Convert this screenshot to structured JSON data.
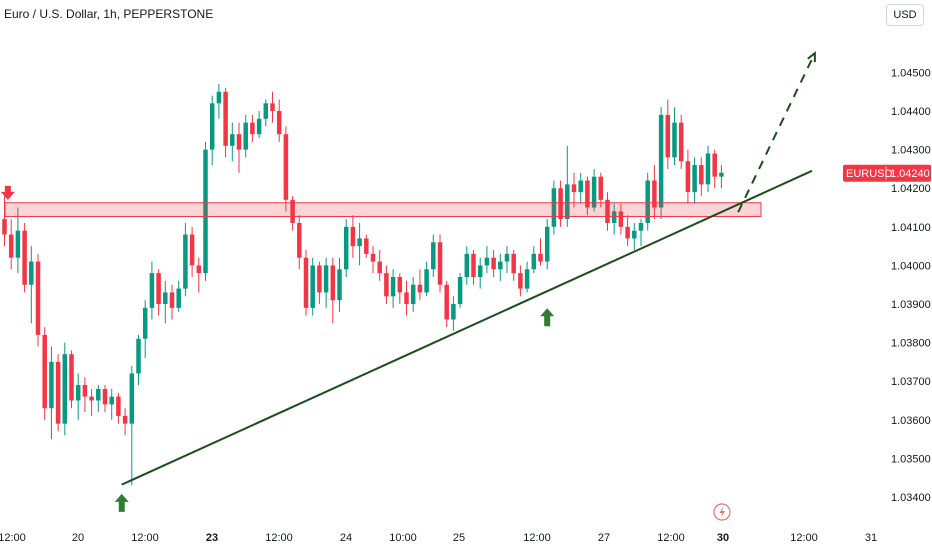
{
  "header": {
    "title": "Euro / U.S. Dollar, 1h, PEPPERSTONE",
    "currency_button": "USD"
  },
  "price_tag": {
    "symbol": "EURUSD",
    "price": "1.04240",
    "value": 1.0424,
    "color": "#f23645"
  },
  "colors": {
    "up": "#089981",
    "down": "#f23645",
    "trendline": "#1b4d1b",
    "zone": "#f23645",
    "arrow_up": "#2e7d32",
    "arrow_down": "#f23645"
  },
  "icons": {
    "replay": "lightning-icon",
    "zone_marker": "down-arrow-icon",
    "support_marker": "up-arrow-icon"
  },
  "chart_data": {
    "type": "candlestick",
    "y_axis": {
      "ticks": [
        1.034,
        1.035,
        1.036,
        1.037,
        1.038,
        1.039,
        1.04,
        1.041,
        1.042,
        1.043,
        1.044,
        1.045
      ],
      "tick_labels": [
        "1.03400",
        "1.03500",
        "1.03600",
        "1.03700",
        "1.03800",
        "1.03900",
        "1.04000",
        "1.04100",
        "1.04200",
        "1.04300",
        "1.04400",
        "1.04500"
      ],
      "range": [
        1.0333,
        1.0461
      ],
      "position": "right"
    },
    "x_axis": {
      "tick_labels": [
        {
          "label": "12:00",
          "bold": false
        },
        {
          "label": "20",
          "bold": false
        },
        {
          "label": "12:00",
          "bold": false
        },
        {
          "label": "23",
          "bold": true
        },
        {
          "label": "12:00",
          "bold": false
        },
        {
          "label": "24",
          "bold": false
        },
        {
          "label": "10:00",
          "bold": false
        },
        {
          "label": "25",
          "bold": false
        },
        {
          "label": "12:00",
          "bold": false
        },
        {
          "label": "27",
          "bold": false
        },
        {
          "label": "12:00",
          "bold": false
        },
        {
          "label": "30",
          "bold": true
        },
        {
          "label": "12:00",
          "bold": false
        },
        {
          "label": "31",
          "bold": false
        }
      ]
    },
    "candles": [
      [
        1.0412,
        1.0418,
        1.0405,
        1.0408
      ],
      [
        1.0408,
        1.0412,
        1.0399,
        1.0402
      ],
      [
        1.0402,
        1.0415,
        1.0398,
        1.0409
      ],
      [
        1.0409,
        1.0411,
        1.0393,
        1.0395
      ],
      [
        1.0395,
        1.0405,
        1.0385,
        1.0401
      ],
      [
        1.0401,
        1.0403,
        1.0379,
        1.0382
      ],
      [
        1.0382,
        1.0384,
        1.036,
        1.0363
      ],
      [
        1.0363,
        1.0379,
        1.0355,
        1.0375
      ],
      [
        1.0375,
        1.0377,
        1.0357,
        1.0359
      ],
      [
        1.0359,
        1.038,
        1.0356,
        1.0377
      ],
      [
        1.0377,
        1.0378,
        1.0363,
        1.0365
      ],
      [
        1.0365,
        1.0372,
        1.036,
        1.0369
      ],
      [
        1.0369,
        1.0371,
        1.0362,
        1.0366
      ],
      [
        1.0366,
        1.0368,
        1.0361,
        1.0365
      ],
      [
        1.0365,
        1.0369,
        1.0362,
        1.0368
      ],
      [
        1.0368,
        1.0369,
        1.0362,
        1.0364
      ],
      [
        1.0364,
        1.0368,
        1.036,
        1.0366
      ],
      [
        1.0366,
        1.0367,
        1.0359,
        1.0361
      ],
      [
        1.0361,
        1.0363,
        1.0356,
        1.0359
      ],
      [
        1.0359,
        1.0374,
        1.0343,
        1.0372
      ],
      [
        1.0372,
        1.0382,
        1.0369,
        1.0381
      ],
      [
        1.0381,
        1.0391,
        1.0376,
        1.0389
      ],
      [
        1.0389,
        1.0401,
        1.0386,
        1.0398
      ],
      [
        1.0398,
        1.0399,
        1.0387,
        1.039
      ],
      [
        1.039,
        1.0396,
        1.0385,
        1.0393
      ],
      [
        1.0393,
        1.0395,
        1.0386,
        1.0389
      ],
      [
        1.0389,
        1.0396,
        1.0388,
        1.0394
      ],
      [
        1.0394,
        1.0411,
        1.0392,
        1.0408
      ],
      [
        1.0408,
        1.041,
        1.0397,
        1.04
      ],
      [
        1.04,
        1.0402,
        1.0393,
        1.0398
      ],
      [
        1.0398,
        1.0432,
        1.0396,
        1.043
      ],
      [
        1.043,
        1.0444,
        1.0426,
        1.0442
      ],
      [
        1.0442,
        1.0447,
        1.0438,
        1.0445
      ],
      [
        1.0445,
        1.0446,
        1.0428,
        1.0431
      ],
      [
        1.0431,
        1.0437,
        1.0427,
        1.0434
      ],
      [
        1.0434,
        1.0437,
        1.0424,
        1.043
      ],
      [
        1.043,
        1.0439,
        1.0428,
        1.0437
      ],
      [
        1.0437,
        1.0439,
        1.0432,
        1.0434
      ],
      [
        1.0434,
        1.044,
        1.0433,
        1.0438
      ],
      [
        1.0438,
        1.0443,
        1.0436,
        1.0442
      ],
      [
        1.0442,
        1.0445,
        1.0437,
        1.044
      ],
      [
        1.044,
        1.0443,
        1.0432,
        1.0434
      ],
      [
        1.0434,
        1.0436,
        1.0414,
        1.0417
      ],
      [
        1.0417,
        1.0418,
        1.0409,
        1.0411
      ],
      [
        1.0411,
        1.0413,
        1.0399,
        1.0402
      ],
      [
        1.0402,
        1.0404,
        1.0387,
        1.0389
      ],
      [
        1.0389,
        1.0402,
        1.0387,
        1.04
      ],
      [
        1.04,
        1.0401,
        1.039,
        1.0393
      ],
      [
        1.0393,
        1.0402,
        1.0389,
        1.04
      ],
      [
        1.04,
        1.0402,
        1.0385,
        1.0391
      ],
      [
        1.0391,
        1.0402,
        1.0388,
        1.0399
      ],
      [
        1.0399,
        1.0412,
        1.0397,
        1.041
      ],
      [
        1.041,
        1.0413,
        1.0402,
        1.0405
      ],
      [
        1.0405,
        1.0411,
        1.04,
        1.0407
      ],
      [
        1.0407,
        1.0408,
        1.0402,
        1.0403
      ],
      [
        1.0403,
        1.0405,
        1.0398,
        1.0401
      ],
      [
        1.0401,
        1.0404,
        1.0396,
        1.0398
      ],
      [
        1.0398,
        1.04,
        1.039,
        1.0392
      ],
      [
        1.0392,
        1.0399,
        1.0389,
        1.0397
      ],
      [
        1.0397,
        1.0398,
        1.039,
        1.0393
      ],
      [
        1.0393,
        1.0396,
        1.0387,
        1.039
      ],
      [
        1.039,
        1.0397,
        1.0388,
        1.0395
      ],
      [
        1.0395,
        1.0399,
        1.0391,
        1.0393
      ],
      [
        1.0393,
        1.0401,
        1.0392,
        1.0399
      ],
      [
        1.0399,
        1.0408,
        1.0397,
        1.0406
      ],
      [
        1.0406,
        1.0408,
        1.0393,
        1.0395
      ],
      [
        1.0395,
        1.0396,
        1.0384,
        1.0386
      ],
      [
        1.0386,
        1.0392,
        1.0383,
        1.039
      ],
      [
        1.039,
        1.0398,
        1.0389,
        1.0397
      ],
      [
        1.0397,
        1.0405,
        1.0395,
        1.0403
      ],
      [
        1.0403,
        1.0404,
        1.0395,
        1.0397
      ],
      [
        1.0397,
        1.0402,
        1.0394,
        1.04
      ],
      [
        1.04,
        1.0405,
        1.0398,
        1.0402
      ],
      [
        1.0402,
        1.0404,
        1.0397,
        1.0399
      ],
      [
        1.0399,
        1.0403,
        1.0396,
        1.0401
      ],
      [
        1.0401,
        1.0405,
        1.0398,
        1.0403
      ],
      [
        1.0403,
        1.0404,
        1.0396,
        1.0398
      ],
      [
        1.0398,
        1.04,
        1.0392,
        1.0394
      ],
      [
        1.0394,
        1.0401,
        1.0393,
        1.0399
      ],
      [
        1.0399,
        1.0405,
        1.0398,
        1.0403
      ],
      [
        1.0403,
        1.0407,
        1.04,
        1.0401
      ],
      [
        1.0401,
        1.0412,
        1.0399,
        1.041
      ],
      [
        1.041,
        1.0422,
        1.0408,
        1.042
      ],
      [
        1.042,
        1.0422,
        1.041,
        1.0412
      ],
      [
        1.0412,
        1.0431,
        1.041,
        1.0421
      ],
      [
        1.0421,
        1.0424,
        1.0415,
        1.0419
      ],
      [
        1.0419,
        1.0424,
        1.0416,
        1.0422
      ],
      [
        1.0422,
        1.0423,
        1.0413,
        1.0415
      ],
      [
        1.0415,
        1.0425,
        1.0414,
        1.0423
      ],
      [
        1.0423,
        1.0424,
        1.0415,
        1.0417
      ],
      [
        1.0417,
        1.0419,
        1.0409,
        1.0411
      ],
      [
        1.0411,
        1.0416,
        1.0408,
        1.0414
      ],
      [
        1.0414,
        1.0416,
        1.0408,
        1.041
      ],
      [
        1.041,
        1.0413,
        1.0405,
        1.0407
      ],
      [
        1.0407,
        1.0411,
        1.0404,
        1.0409
      ],
      [
        1.0409,
        1.0412,
        1.0405,
        1.0411
      ],
      [
        1.0411,
        1.0424,
        1.0409,
        1.0422
      ],
      [
        1.0422,
        1.0426,
        1.0412,
        1.0415
      ],
      [
        1.0415,
        1.0441,
        1.0412,
        1.0439
      ],
      [
        1.0439,
        1.0443,
        1.0425,
        1.0428
      ],
      [
        1.0428,
        1.0441,
        1.0426,
        1.0437
      ],
      [
        1.0437,
        1.0439,
        1.0425,
        1.0427
      ],
      [
        1.0427,
        1.043,
        1.0416,
        1.0419
      ],
      [
        1.0419,
        1.0428,
        1.0416,
        1.0426
      ],
      [
        1.0426,
        1.0428,
        1.0418,
        1.0421
      ],
      [
        1.0421,
        1.0431,
        1.0419,
        1.0429
      ],
      [
        1.0429,
        1.043,
        1.042,
        1.0423
      ],
      [
        1.0423,
        1.0426,
        1.042,
        1.0424
      ]
    ],
    "zone": {
      "low": 1.04137,
      "high": 1.04152,
      "label": ""
    },
    "trendline": {
      "from": {
        "candle": 17.5,
        "price": 1.03432
      },
      "to": {
        "candle": 120,
        "price": 1.04241
      }
    },
    "projection": {
      "points": [
        {
          "candle": 109.5,
          "price": 1.04143
        },
        {
          "candle": 120.5,
          "price": 1.04537
        }
      ]
    },
    "markers": [
      {
        "kind": "down",
        "candle": 0.5,
        "price": 1.04175
      },
      {
        "kind": "up",
        "candle": 17.5,
        "price": 1.03408
      },
      {
        "kind": "up",
        "candle": 81,
        "price": 1.03889
      }
    ],
    "grid": false,
    "legend": "none"
  }
}
